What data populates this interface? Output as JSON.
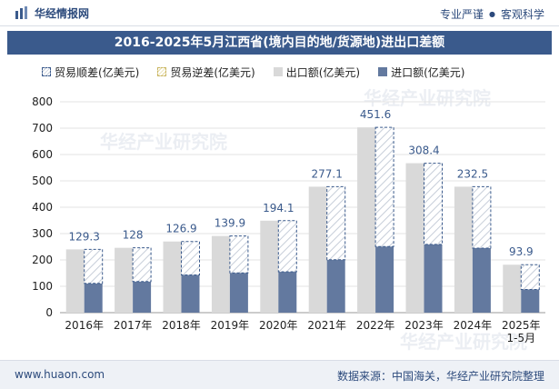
{
  "header": {
    "brand": "华经情报网",
    "tagline_left": "专业严谨",
    "tagline_sep": "●",
    "tagline_right": "客观科学"
  },
  "title": "2016-2025年5月江西省(境内目的地/货源地)进出口差额",
  "legend": {
    "shun": "贸易顺差(亿美元)",
    "ni": "贸易逆差(亿美元)",
    "exp": "出口额(亿美元)",
    "imp": "进口额(亿美元)"
  },
  "watermark": "华经产业研究院",
  "colors": {
    "export": "#d9d9d9",
    "import": "#63799f",
    "surplus_border": "#3a5a8c",
    "title_bg": "#3a5a8c"
  },
  "chart_data": {
    "type": "bar",
    "categories": [
      "2016年",
      "2017年",
      "2018年",
      "2019年",
      "2020年",
      "2021年",
      "2022年",
      "2023年",
      "2024年",
      "2025年\n1-5月"
    ],
    "ylim": [
      0,
      800
    ],
    "yticks": [
      0,
      100,
      200,
      300,
      400,
      500,
      600,
      700,
      800
    ],
    "series": [
      {
        "name": "出口额(亿美元)",
        "values": [
          240,
          246,
          270,
          291,
          349,
          478,
          703,
          567,
          478,
          182
        ]
      },
      {
        "name": "进口额(亿美元)",
        "values": [
          111,
          118,
          143,
          151,
          155,
          201,
          251,
          259,
          245,
          88
        ]
      },
      {
        "name": "贸易顺差(亿美元)",
        "values": [
          129.3,
          128,
          126.9,
          139.9,
          194.1,
          277.1,
          451.6,
          308.4,
          232.5,
          93.9
        ]
      }
    ]
  },
  "footer": {
    "left": "www.huaon.com",
    "right": "数据来源：中国海关，华经产业研究院整理"
  }
}
